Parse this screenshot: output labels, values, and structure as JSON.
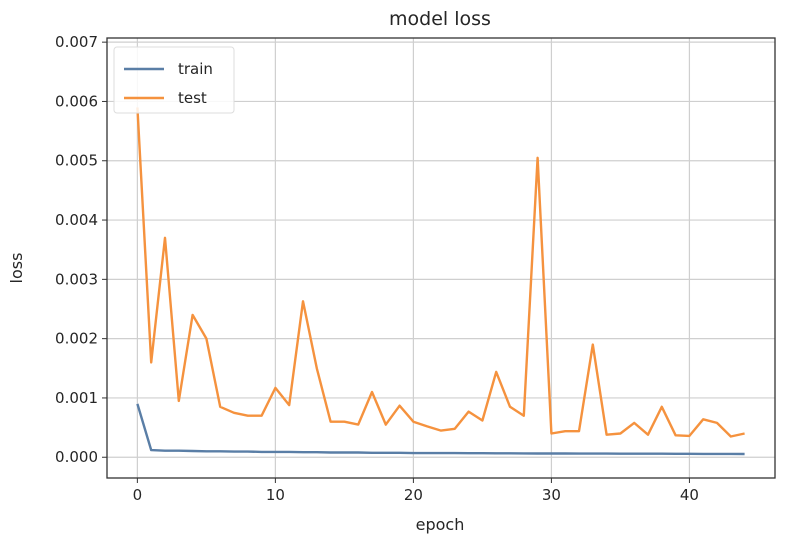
{
  "chart_data": {
    "type": "line",
    "title": "model loss",
    "xlabel": "epoch",
    "ylabel": "loss",
    "xlim": [
      -2.2,
      46.2
    ],
    "ylim": [
      -0.00035,
      0.00707
    ],
    "xticks": [
      0,
      10,
      20,
      30,
      40
    ],
    "yticks": [
      0.0,
      0.001,
      0.002,
      0.003,
      0.004,
      0.005,
      0.006,
      0.007
    ],
    "ytick_labels": [
      "0.000",
      "0.001",
      "0.002",
      "0.003",
      "0.004",
      "0.005",
      "0.006",
      "0.007"
    ],
    "grid": true,
    "legend_position": "top-left",
    "x": [
      0,
      1,
      2,
      3,
      4,
      5,
      6,
      7,
      8,
      9,
      10,
      11,
      12,
      13,
      14,
      15,
      16,
      17,
      18,
      19,
      20,
      21,
      22,
      23,
      24,
      25,
      26,
      27,
      28,
      29,
      30,
      31,
      32,
      33,
      34,
      35,
      36,
      37,
      38,
      39,
      40,
      41,
      42,
      43,
      44
    ],
    "series": [
      {
        "name": "train",
        "color": "#5a7ea6",
        "values": [
          0.0009,
          0.00012,
          0.00011,
          0.00011,
          0.000105,
          0.0001,
          0.0001,
          9.5e-05,
          9.5e-05,
          9e-05,
          9e-05,
          9e-05,
          8.5e-05,
          8.5e-05,
          8e-05,
          8e-05,
          8e-05,
          7.5e-05,
          7.5e-05,
          7.5e-05,
          7e-05,
          7e-05,
          7e-05,
          7e-05,
          6.8e-05,
          6.8e-05,
          6.6e-05,
          6.6e-05,
          6.5e-05,
          6.4e-05,
          6.4e-05,
          6.3e-05,
          6.2e-05,
          6.2e-05,
          6.1e-05,
          6e-05,
          6e-05,
          6e-05,
          5.9e-05,
          5.8e-05,
          5.8e-05,
          5.7e-05,
          5.7e-05,
          5.6e-05,
          5.5e-05
        ]
      },
      {
        "name": "test",
        "color": "#f5923e",
        "values": [
          0.0059,
          0.0016,
          0.0037,
          0.00095,
          0.0024,
          0.002,
          0.00085,
          0.00075,
          0.0007,
          0.0007,
          0.00117,
          0.00088,
          0.00263,
          0.0015,
          0.0006,
          0.0006,
          0.00055,
          0.0011,
          0.00055,
          0.00087,
          0.0006,
          0.00052,
          0.00045,
          0.00048,
          0.00077,
          0.00062,
          0.00144,
          0.00085,
          0.0007,
          0.00505,
          0.0004,
          0.00044,
          0.00044,
          0.0019,
          0.00038,
          0.0004,
          0.00058,
          0.00038,
          0.00085,
          0.00037,
          0.00036,
          0.00064,
          0.00058,
          0.00035,
          0.0004
        ]
      }
    ]
  }
}
